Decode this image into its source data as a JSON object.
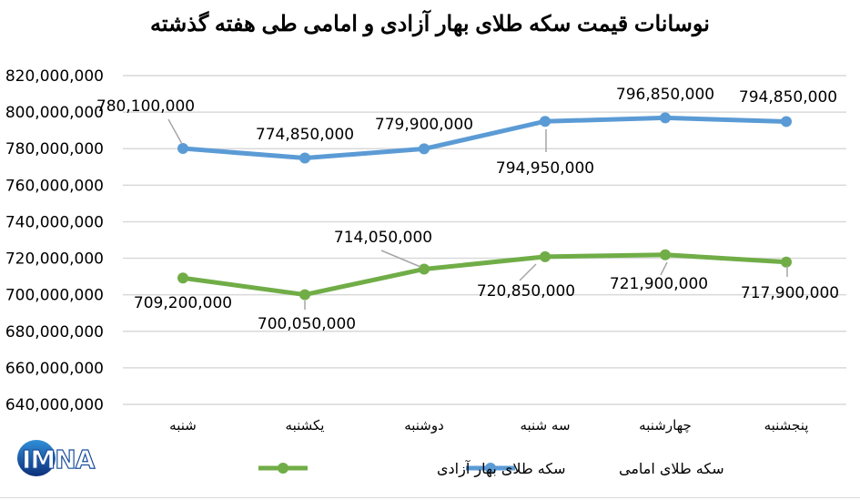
{
  "chart_data": {
    "type": "line",
    "title": "نوسانات قیمت سکه طلای بهار آزادی و امامی طی هفته گذشته",
    "xlabel": "",
    "ylabel": "",
    "categories": [
      "شنبه",
      "یکشنبه",
      "دوشنبه",
      "سه شنبه",
      "چهارشنبه",
      "پنجشنبه"
    ],
    "ylim": [
      640000000,
      820000000
    ],
    "yticks": [
      640000000,
      660000000,
      680000000,
      700000000,
      720000000,
      740000000,
      760000000,
      780000000,
      800000000,
      820000000
    ],
    "ytick_labels": [
      "640,000,000",
      "660,000,000",
      "680,000,000",
      "700,000,000",
      "720,000,000",
      "740,000,000",
      "760,000,000",
      "780,000,000",
      "800,000,000",
      "820,000,000"
    ],
    "grid": true,
    "legend_position": "bottom",
    "series": [
      {
        "name": "سکه طلای امامی",
        "color": "#5b9bd5",
        "values": [
          780100000,
          774850000,
          779900000,
          794950000,
          796850000,
          794850000
        ],
        "labels": [
          "780,100,000",
          "774,850,000",
          "779,900,000",
          "794,950,000",
          "796,850,000",
          "794,850,000"
        ]
      },
      {
        "name": "سکه طلای بهار آزادی",
        "color": "#70ad47",
        "values": [
          709200000,
          700050000,
          714050000,
          720850000,
          721900000,
          717900000
        ],
        "labels": [
          "709,200,000",
          "700,050,000",
          "714,050,000",
          "720,850,000",
          "721,900,000",
          "717,900,000"
        ]
      }
    ]
  },
  "title": "نوسانات قیمت سکه طلای بهار آزادی و امامی طی هفته گذشته",
  "legend": {
    "items": [
      {
        "label": "سکه طلای امامی",
        "color": "#5b9bd5"
      },
      {
        "label": "سکه طلای بهار آزادی",
        "color": "#70ad47"
      }
    ]
  },
  "logo": {
    "text": "IMNA"
  },
  "colors": {
    "grid": "#d9d9d9",
    "leader": "#a6a6a6",
    "text": "#000000",
    "logo_blue": "#1b4f9c"
  }
}
